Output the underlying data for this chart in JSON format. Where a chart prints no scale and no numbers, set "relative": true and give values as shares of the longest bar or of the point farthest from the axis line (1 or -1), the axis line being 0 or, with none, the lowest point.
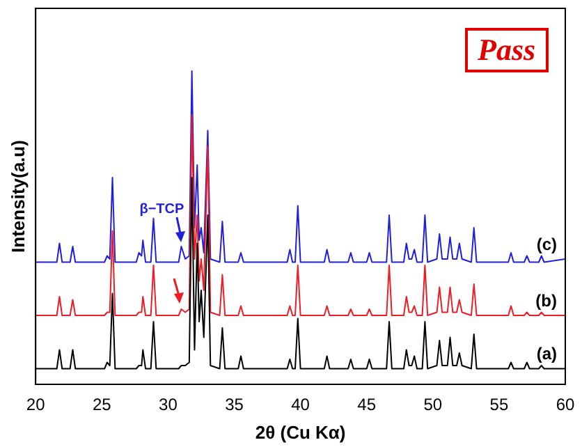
{
  "chart_data": {
    "type": "line",
    "relative": true,
    "xlabel": "2θ (Cu Kα)",
    "ylabel": "Intensity(a.u)",
    "xlim": [
      20,
      60
    ],
    "xticks": [
      20,
      25,
      30,
      35,
      40,
      45,
      50,
      55,
      60
    ],
    "legend": false,
    "grid": false,
    "marker": "none",
    "line_style": "solid",
    "annotations": [
      "Pass",
      {
        "text": "β−TCP",
        "x": 31,
        "y": 0.44
      }
    ],
    "x": [
      20,
      21.6,
      21.8,
      22.0,
      22.6,
      22.8,
      23.0,
      25.2,
      25.4,
      25.6,
      25.8,
      26.0,
      27.6,
      27.8,
      28.0,
      28.1,
      28.3,
      28.7,
      28.9,
      29.1,
      30.8,
      31.0,
      31.3,
      31.6,
      31.8,
      32.0,
      32.2,
      32.35,
      32.5,
      32.7,
      33.0,
      33.2,
      33.9,
      34.1,
      34.3,
      35.3,
      35.5,
      35.7,
      39.0,
      39.2,
      39.4,
      39.6,
      39.8,
      40.0,
      41.8,
      42.0,
      42.2,
      43.6,
      43.8,
      44.0,
      45.0,
      45.2,
      45.4,
      46.5,
      46.7,
      46.9,
      47.8,
      48.0,
      48.2,
      48.4,
      48.6,
      48.8,
      49.2,
      49.4,
      49.6,
      50.3,
      50.5,
      50.7,
      51.1,
      51.3,
      51.5,
      51.8,
      52.0,
      52.2,
      52.9,
      53.1,
      53.3,
      55.7,
      55.9,
      56.1,
      56.9,
      57.1,
      57.3,
      58.0,
      58.2,
      58.4,
      60
    ],
    "series": [
      {
        "name": "(a)",
        "color": "#000000",
        "values": [
          0.05,
          0.05,
          0.11,
          0.05,
          0.05,
          0.11,
          0.05,
          0.05,
          0.07,
          0.06,
          0.29,
          0.05,
          0.05,
          0.06,
          0.06,
          0.11,
          0.05,
          0.05,
          0.2,
          0.05,
          0.05,
          0.06,
          0.06,
          0.07,
          0.66,
          0.11,
          0.45,
          0.2,
          0.3,
          0.15,
          0.54,
          0.06,
          0.05,
          0.18,
          0.05,
          0.05,
          0.09,
          0.05,
          0.05,
          0.08,
          0.05,
          0.05,
          0.21,
          0.05,
          0.05,
          0.09,
          0.05,
          0.05,
          0.08,
          0.05,
          0.05,
          0.08,
          0.05,
          0.05,
          0.2,
          0.05,
          0.05,
          0.11,
          0.06,
          0.06,
          0.09,
          0.05,
          0.05,
          0.2,
          0.05,
          0.06,
          0.14,
          0.06,
          0.06,
          0.15,
          0.06,
          0.06,
          0.1,
          0.06,
          0.05,
          0.16,
          0.05,
          0.05,
          0.07,
          0.05,
          0.05,
          0.07,
          0.05,
          0.05,
          0.06,
          0.05,
          0.05
        ]
      },
      {
        "name": "(b)",
        "color": "#ee1c24",
        "values": [
          0.22,
          0.22,
          0.28,
          0.22,
          0.22,
          0.27,
          0.22,
          0.22,
          0.23,
          0.23,
          0.49,
          0.22,
          0.22,
          0.23,
          0.23,
          0.28,
          0.22,
          0.22,
          0.38,
          0.22,
          0.22,
          0.24,
          0.23,
          0.24,
          0.86,
          0.4,
          0.54,
          0.33,
          0.4,
          0.3,
          0.76,
          0.23,
          0.22,
          0.35,
          0.22,
          0.22,
          0.25,
          0.22,
          0.22,
          0.25,
          0.22,
          0.22,
          0.38,
          0.22,
          0.22,
          0.25,
          0.22,
          0.22,
          0.24,
          0.22,
          0.22,
          0.24,
          0.22,
          0.22,
          0.38,
          0.22,
          0.22,
          0.28,
          0.23,
          0.23,
          0.25,
          0.22,
          0.22,
          0.38,
          0.22,
          0.23,
          0.31,
          0.23,
          0.23,
          0.31,
          0.23,
          0.23,
          0.27,
          0.23,
          0.22,
          0.32,
          0.22,
          0.22,
          0.25,
          0.22,
          0.22,
          0.23,
          0.22,
          0.22,
          0.23,
          0.22,
          0.22
        ]
      },
      {
        "name": "(c)",
        "color": "#1f1fdc",
        "values": [
          0.39,
          0.39,
          0.45,
          0.39,
          0.39,
          0.44,
          0.39,
          0.39,
          0.41,
          0.4,
          0.66,
          0.39,
          0.39,
          0.42,
          0.41,
          0.46,
          0.39,
          0.39,
          0.53,
          0.39,
          0.39,
          0.44,
          0.4,
          0.41,
          1.0,
          0.5,
          0.7,
          0.46,
          0.5,
          0.42,
          0.81,
          0.4,
          0.39,
          0.52,
          0.39,
          0.39,
          0.42,
          0.39,
          0.39,
          0.43,
          0.39,
          0.39,
          0.57,
          0.39,
          0.39,
          0.43,
          0.39,
          0.39,
          0.42,
          0.39,
          0.39,
          0.42,
          0.39,
          0.39,
          0.54,
          0.39,
          0.39,
          0.45,
          0.4,
          0.4,
          0.43,
          0.39,
          0.39,
          0.54,
          0.39,
          0.4,
          0.48,
          0.4,
          0.4,
          0.47,
          0.4,
          0.4,
          0.45,
          0.4,
          0.39,
          0.5,
          0.39,
          0.39,
          0.42,
          0.39,
          0.39,
          0.41,
          0.39,
          0.39,
          0.41,
          0.39,
          0.4
        ]
      }
    ]
  }
}
